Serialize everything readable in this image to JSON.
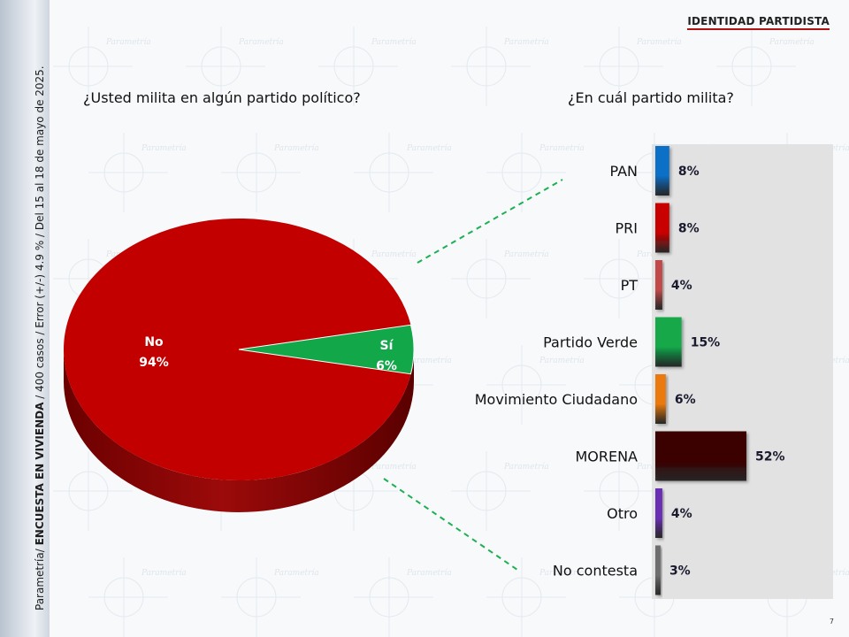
{
  "header": {
    "tag": "IDENTIDAD PARTIDISTA"
  },
  "sidebar": {
    "prefix": "Parametría/",
    "bold": "ENCUESTA EN VIVIENDA",
    "suffix": "/ 400 casos / Error (+/-) 4.9 % / Del 15 al 18 de mayo de 2025."
  },
  "page_number": "7",
  "watermark": "Parametría",
  "chart_data": [
    {
      "type": "pie",
      "title": "¿Usted milita en algún partido político?",
      "categories": [
        "No",
        "Sí"
      ],
      "values": [
        94,
        6
      ],
      "labels": [
        "94%",
        "6%"
      ],
      "colors": [
        "#c20000",
        "#12a84a"
      ]
    },
    {
      "type": "bar",
      "orientation": "horizontal",
      "title": "¿En cuál partido milita?",
      "categories": [
        "PAN",
        "PRI",
        "PT",
        "Partido Verde",
        "Movimiento Ciudadano",
        "MORENA",
        "Otro",
        "No contesta"
      ],
      "values": [
        8,
        8,
        4,
        15,
        6,
        52,
        4,
        3
      ],
      "labels": [
        "8%",
        "8%",
        "4%",
        "15%",
        "6%",
        "52%",
        "4%",
        "3%"
      ],
      "colors": [
        "#0d6fc7",
        "#c80000",
        "#c24a4a",
        "#12a84a",
        "#ea7a0e",
        "#3a0202",
        "#6b2fb5",
        "#6e6e6e"
      ],
      "xlim": [
        0,
        55
      ],
      "grid": false
    }
  ]
}
